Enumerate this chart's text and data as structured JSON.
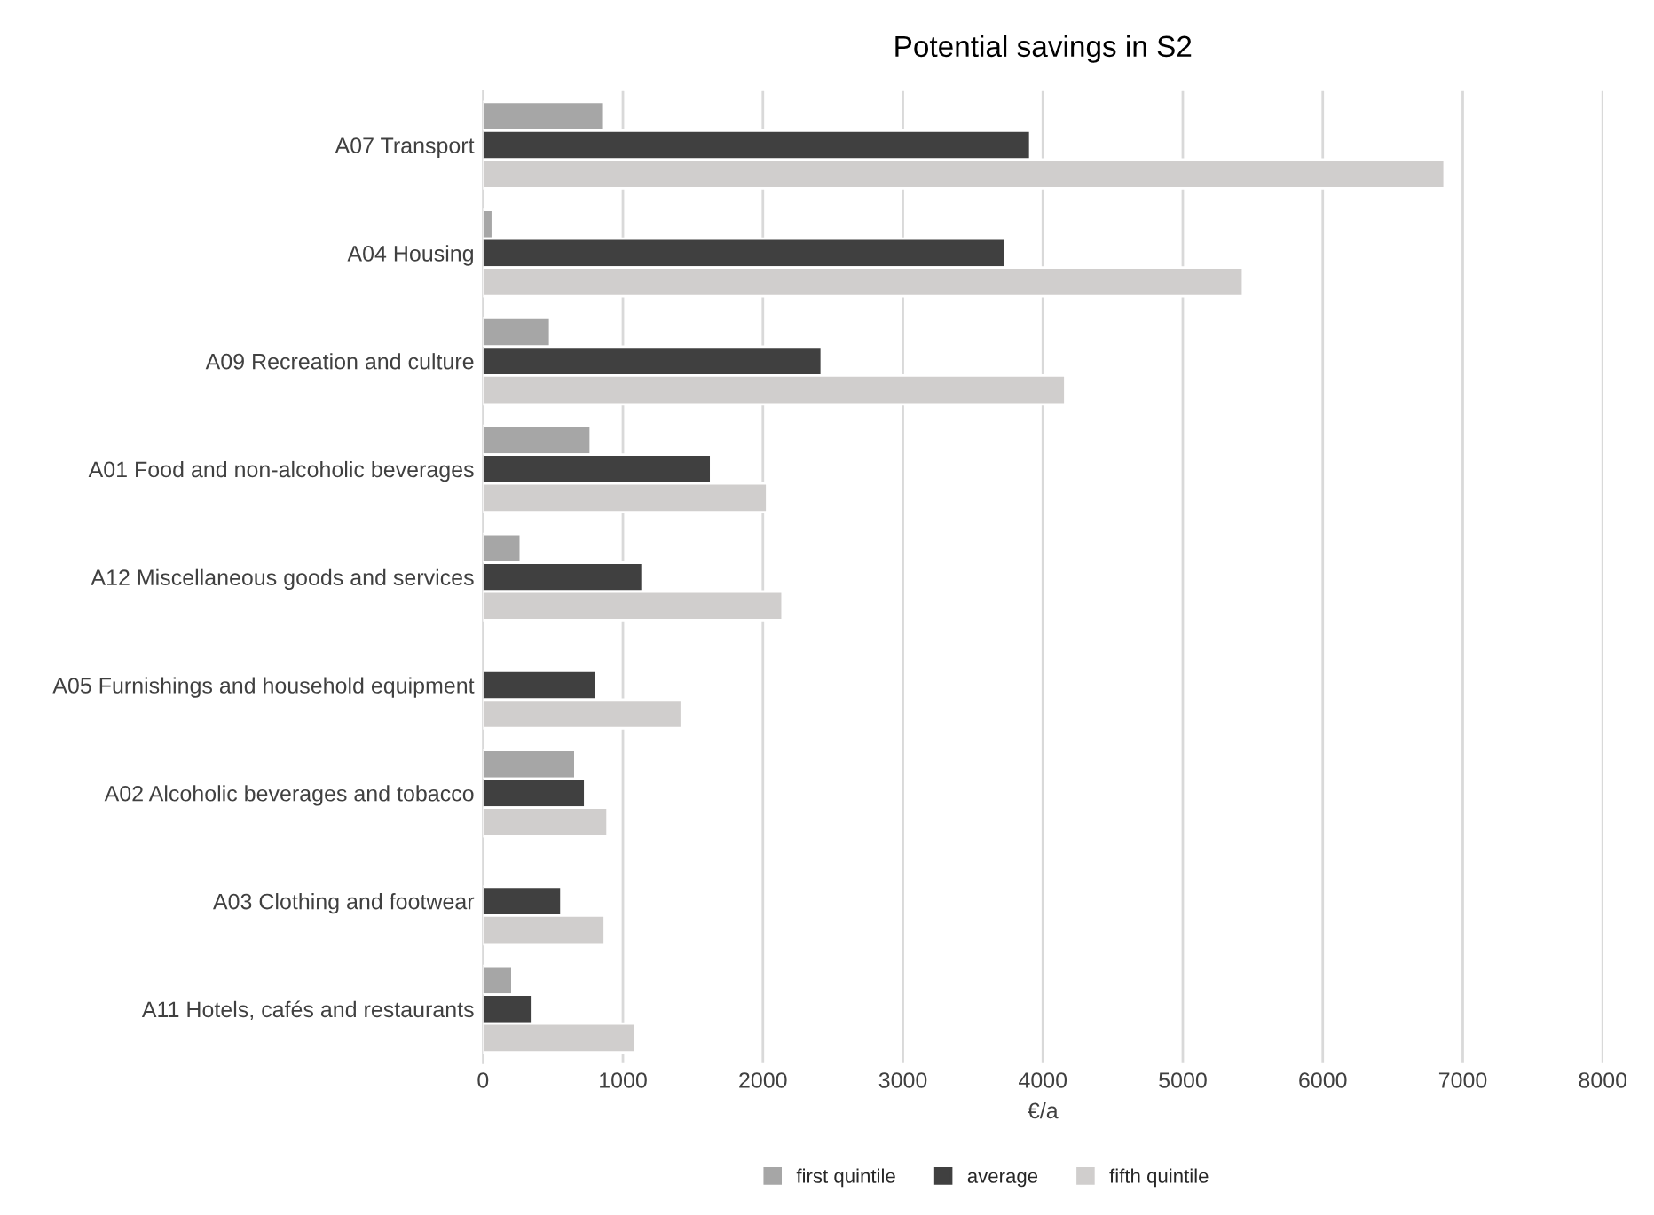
{
  "chart_data": {
    "type": "bar",
    "orientation": "horizontal",
    "title": "Potential savings in S2",
    "xlabel": "€/a",
    "categories": [
      "A07 Transport",
      "A04 Housing",
      "A09 Recreation and culture",
      "A01 Food and non-alcoholic beverages",
      "A12 Miscellaneous goods and services",
      "A05 Furnishings and household equipment",
      "A02 Alcoholic beverages and tobacco",
      "A03 Clothing and footwear",
      "A11 Hotels, cafés and restaurants"
    ],
    "series": [
      {
        "name": "first quintile",
        "color": "#a6a6a6",
        "values": [
          860,
          70,
          480,
          770,
          270,
          null,
          660,
          null,
          210
        ]
      },
      {
        "name": "average",
        "color": "#404040",
        "values": [
          3910,
          3730,
          2420,
          1630,
          1140,
          810,
          730,
          560,
          350
        ]
      },
      {
        "name": "fifth quintile",
        "color": "#d0cecd",
        "values": [
          6870,
          5430,
          4160,
          2030,
          2140,
          1420,
          890,
          870,
          1090
        ]
      }
    ],
    "xlim": [
      0,
      8000
    ],
    "xticks": [
      0,
      1000,
      2000,
      3000,
      4000,
      5000,
      6000,
      7000,
      8000
    ],
    "grid": "x",
    "legend": "bottom"
  }
}
